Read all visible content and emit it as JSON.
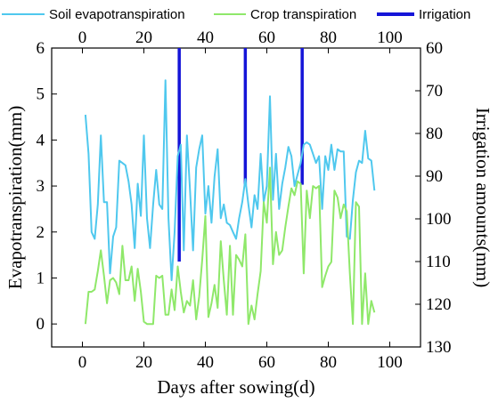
{
  "chart_data": {
    "type": "line",
    "xlabel": "Days after sowing(d)",
    "ylabel_left": "Evapotranspiration(mm)",
    "ylabel_right": "Irrigation amounts(mm)",
    "xlim": [
      -10,
      110
    ],
    "ylim_left": [
      -0.5,
      6
    ],
    "ylim_right": [
      130,
      60
    ],
    "x_ticks": [
      0,
      20,
      40,
      60,
      80,
      100
    ],
    "y_ticks_left": [
      0,
      1,
      2,
      3,
      4,
      5,
      6
    ],
    "y_ticks_right": [
      60,
      70,
      80,
      90,
      100,
      110,
      120,
      130
    ],
    "grid": false,
    "legend_position": "top",
    "series": [
      {
        "name": "Soil evapotranspiration",
        "color": "#4fc8ee",
        "kind": "line",
        "axis": "left",
        "x": [
          1,
          2,
          3,
          4,
          5,
          6,
          7,
          8,
          9,
          10,
          11,
          12,
          13,
          14,
          15,
          16,
          17,
          18,
          19,
          20,
          21,
          22,
          23,
          24,
          25,
          26,
          27,
          28,
          29,
          30,
          31,
          32,
          33,
          34,
          35,
          36,
          37,
          38,
          39,
          40,
          41,
          42,
          43,
          44,
          45,
          46,
          47,
          48,
          49,
          50,
          51,
          52,
          53,
          54,
          55,
          56,
          57,
          58,
          59,
          60,
          61,
          62,
          63,
          64,
          65,
          66,
          67,
          68,
          69,
          70,
          71,
          72,
          73,
          74,
          75,
          76,
          77,
          78,
          79,
          80,
          81,
          82,
          83,
          84,
          85,
          86,
          87,
          88,
          89,
          90,
          91,
          92,
          93,
          94,
          95
        ],
        "y": [
          4.55,
          3.7,
          2.0,
          1.85,
          2.6,
          4.1,
          2.65,
          2.65,
          1.1,
          1.9,
          2.1,
          3.55,
          3.5,
          3.45,
          3.1,
          2.6,
          1.65,
          3.05,
          2.35,
          4.1,
          2.3,
          1.65,
          2.6,
          3.35,
          2.6,
          2.5,
          5.3,
          2.3,
          0.95,
          2.0,
          3.65,
          3.9,
          1.6,
          4.1,
          2.9,
          1.6,
          3.4,
          3.8,
          4.1,
          2.4,
          3.0,
          2.2,
          3.2,
          3.8,
          2.3,
          2.6,
          2.2,
          2.15,
          2.0,
          1.85,
          2.3,
          2.65,
          3.15,
          2.6,
          2.1,
          2.8,
          2.5,
          3.7,
          2.65,
          3.0,
          4.95,
          2.7,
          3.7,
          2.5,
          3.05,
          3.4,
          3.85,
          3.65,
          3.0,
          3.25,
          3.5,
          3.9,
          3.95,
          3.9,
          3.7,
          3.5,
          3.65,
          2.5,
          3.65,
          3.35,
          3.9,
          3.35,
          3.8,
          3.75,
          3.75,
          1.9,
          1.85,
          2.7,
          3.3,
          3.55,
          3.5,
          4.2,
          3.6,
          3.55,
          2.9
        ]
      },
      {
        "name": "Crop transpiration",
        "color": "#8fe86a",
        "kind": "line",
        "axis": "left",
        "x": [
          1,
          2,
          3,
          4,
          5,
          6,
          7,
          8,
          9,
          10,
          11,
          12,
          13,
          14,
          15,
          16,
          17,
          18,
          19,
          20,
          21,
          22,
          23,
          24,
          25,
          26,
          27,
          28,
          29,
          30,
          31,
          32,
          33,
          34,
          35,
          36,
          37,
          38,
          39,
          40,
          41,
          42,
          43,
          44,
          45,
          46,
          47,
          48,
          49,
          50,
          51,
          52,
          53,
          54,
          55,
          56,
          57,
          58,
          59,
          60,
          61,
          62,
          63,
          64,
          65,
          66,
          67,
          68,
          69,
          70,
          71,
          72,
          73,
          74,
          75,
          76,
          77,
          78,
          79,
          80,
          81,
          82,
          83,
          84,
          85,
          86,
          87,
          88,
          89,
          90,
          91,
          92,
          93,
          94,
          95
        ],
        "y": [
          0.0,
          0.7,
          0.7,
          0.75,
          1.15,
          1.6,
          1.05,
          0.45,
          0.95,
          1.0,
          0.9,
          0.65,
          1.7,
          0.95,
          0.95,
          1.25,
          0.5,
          1.2,
          0.7,
          0.05,
          0.0,
          0.0,
          0.0,
          1.05,
          1.0,
          1.05,
          0.2,
          0.2,
          0.75,
          0.3,
          1.25,
          0.7,
          0.25,
          0.5,
          0.4,
          0.95,
          0.1,
          0.6,
          1.4,
          2.35,
          0.15,
          0.45,
          0.85,
          0.35,
          1.8,
          0.95,
          0.2,
          1.7,
          0.2,
          1.5,
          1.4,
          1.25,
          1.95,
          0.0,
          0.4,
          0.1,
          0.65,
          1.15,
          2.65,
          2.2,
          3.4,
          1.3,
          2.0,
          1.5,
          1.6,
          2.1,
          2.55,
          2.95,
          2.8,
          3.1,
          3.05,
          1.1,
          2.9,
          2.3,
          3.0,
          2.95,
          3.0,
          0.8,
          1.05,
          1.25,
          1.35,
          2.9,
          2.75,
          2.3,
          2.6,
          2.45,
          1.1,
          0.0,
          2.65,
          2.55,
          0.0,
          1.1,
          0.0,
          0.5,
          0.25
        ]
      },
      {
        "name": "Irrigation",
        "color": "#1515d8",
        "kind": "bar",
        "axis": "right",
        "x": [
          31.5,
          53,
          71.5
        ],
        "y": [
          110,
          92,
          92
        ]
      }
    ]
  }
}
